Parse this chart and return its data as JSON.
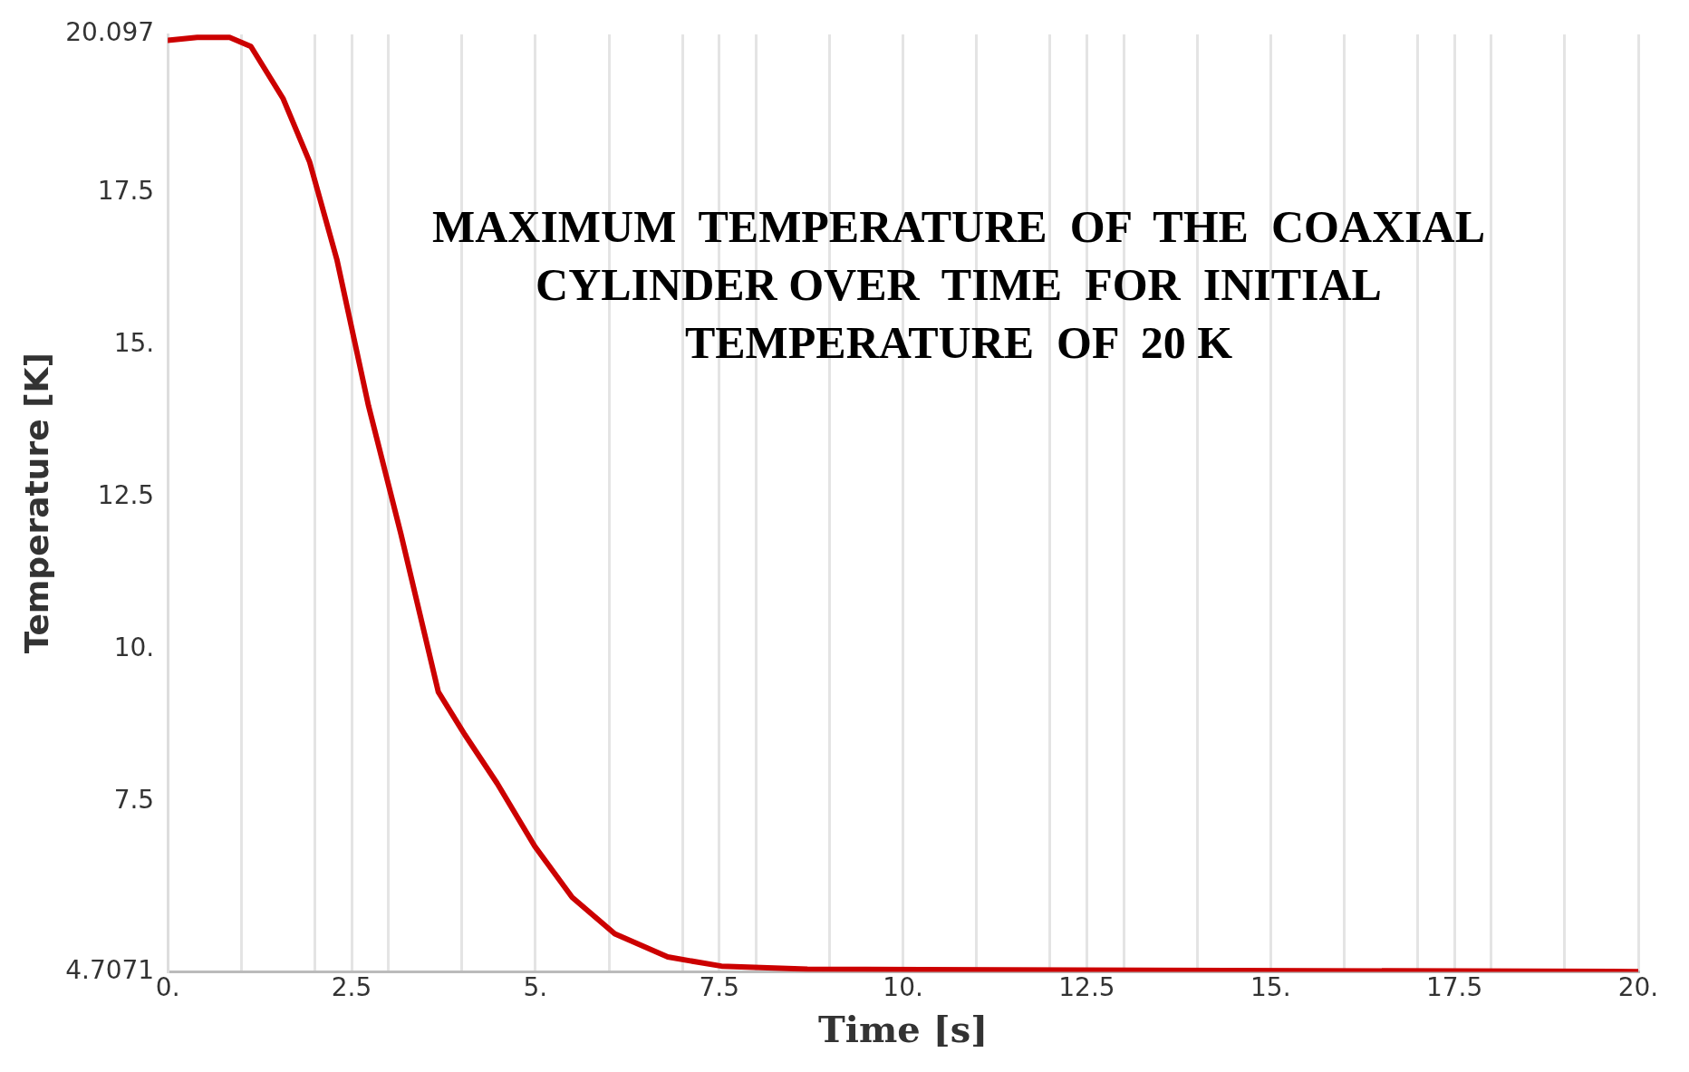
{
  "chart_data": {
    "type": "line",
    "title": "MAXIMUM  TEMPERATURE  OF  THE  COAXIAL CYLINDER OVER  TIME  FOR  INITIAL TEMPERATURE  OF  20 K",
    "xlabel": "Time [s]",
    "ylabel": "Temperature [K]",
    "x": [
      0,
      0.4,
      0.84,
      1.13,
      1.57,
      1.93,
      2.3,
      2.73,
      3.17,
      3.68,
      4.04,
      4.48,
      4.99,
      5.5,
      6.08,
      6.8,
      7.53,
      8.7,
      20
    ],
    "series": [
      {
        "color": "#cc0000",
        "values": [
          20.0,
          20.05,
          20.05,
          19.9,
          19.04,
          18.0,
          16.4,
          14.0,
          11.9,
          9.3,
          8.6,
          7.8,
          6.77,
          5.93,
          5.33,
          4.95,
          4.8,
          4.75,
          4.71
        ]
      }
    ],
    "xlim": [
      0,
      20
    ],
    "xticks": [
      {
        "value": 0,
        "label": "0."
      },
      {
        "value": 1,
        "label": null
      },
      {
        "value": 2,
        "label": null
      },
      {
        "value": 2.5,
        "label": "2.5"
      },
      {
        "value": 3,
        "label": null
      },
      {
        "value": 4,
        "label": null
      },
      {
        "value": 5,
        "label": "5."
      },
      {
        "value": 6,
        "label": null
      },
      {
        "value": 7,
        "label": null
      },
      {
        "value": 7.5,
        "label": "7.5"
      },
      {
        "value": 8,
        "label": null
      },
      {
        "value": 9,
        "label": null
      },
      {
        "value": 10,
        "label": "10."
      },
      {
        "value": 11,
        "label": null
      },
      {
        "value": 12,
        "label": null
      },
      {
        "value": 12.5,
        "label": "12.5"
      },
      {
        "value": 13,
        "label": null
      },
      {
        "value": 14,
        "label": null
      },
      {
        "value": 15,
        "label": "15."
      },
      {
        "value": 16,
        "label": null
      },
      {
        "value": 17,
        "label": null
      },
      {
        "value": 17.5,
        "label": "17.5"
      },
      {
        "value": 18,
        "label": null
      },
      {
        "value": 19,
        "label": null
      },
      {
        "value": 20,
        "label": "20."
      }
    ],
    "ylim": [
      4.7071,
      20.097
    ],
    "yticks": [
      4.7071,
      7.5,
      {
        "value": 10,
        "label": "10."
      },
      12.5,
      {
        "value": 15,
        "label": "15."
      },
      17.5,
      20.097
    ],
    "grid": "x",
    "marker": "none",
    "line_style": "solid",
    "legend": false
  }
}
